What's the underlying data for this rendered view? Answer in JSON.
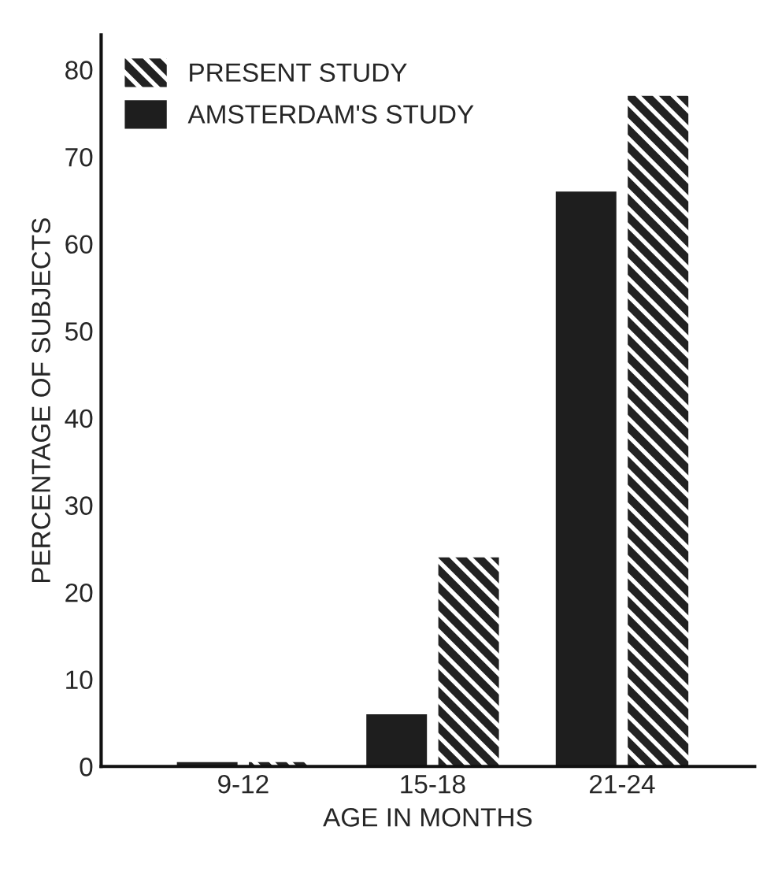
{
  "chart_data": {
    "type": "bar",
    "xlabel": "AGE IN MONTHS",
    "ylabel": "PERCENTAGE OF SUBJECTS",
    "categories": [
      "9-12",
      "15-18",
      "21-24"
    ],
    "series": [
      {
        "name": "AMSTERDAM'S STUDY",
        "color": "#1e1e1e",
        "values": [
          0.5,
          6,
          66
        ]
      },
      {
        "name": "PRESENT STUDY",
        "color": "#222222",
        "values": [
          0.5,
          24,
          77
        ]
      }
    ],
    "ylim": [
      0,
      84
    ],
    "yticks": [
      0,
      10,
      20,
      30,
      40,
      50,
      60,
      70,
      80
    ],
    "grid": false,
    "legend": "top left"
  }
}
